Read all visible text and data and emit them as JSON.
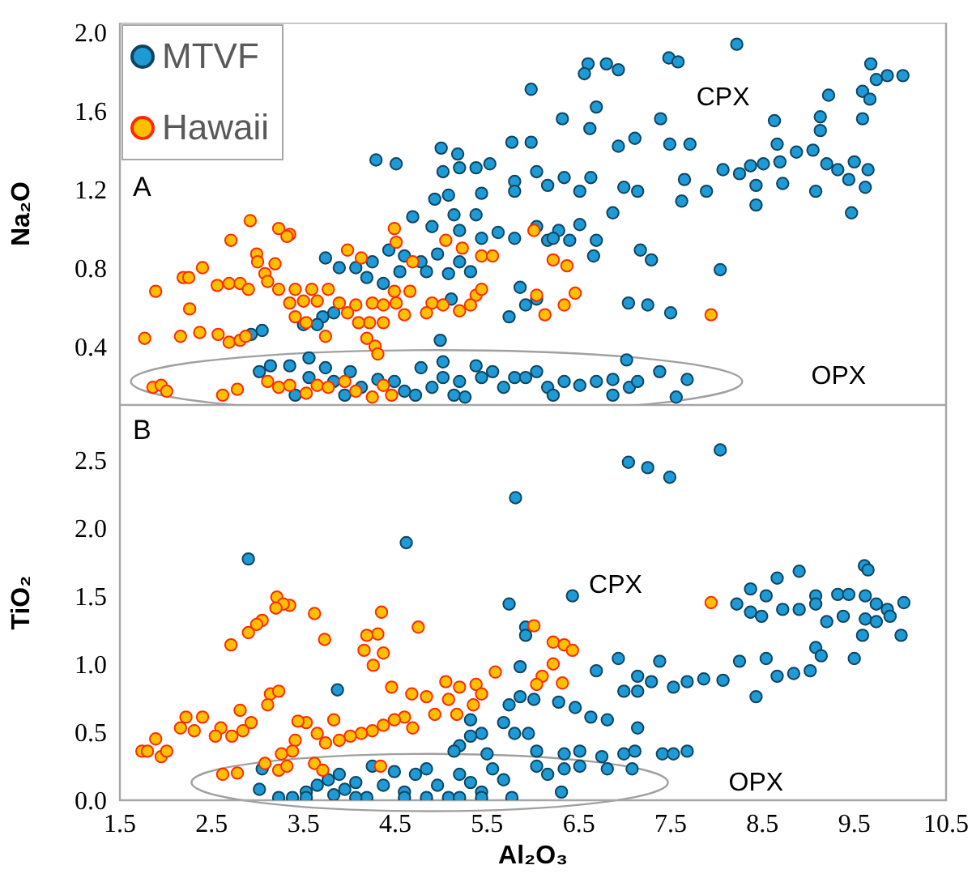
{
  "chart_data": [
    {
      "type": "scatter",
      "ylabel": "Na₂O",
      "legend": "top left",
      "marker": "circle",
      "tick_labels": "y",
      "xlim": [
        1.5,
        10.5
      ],
      "xticks": [
        1.5,
        2.5,
        3.5,
        4.5,
        5.5,
        6.5,
        7.5,
        8.5,
        9.5,
        10.5
      ],
      "ylim": [
        0.1,
        2.05
      ],
      "yticks": [
        0.4,
        0.8,
        1.2,
        1.6,
        {
          "value": 2,
          "label": "2.0"
        }
      ],
      "annotations": [
        "A",
        "CPX",
        "OPX"
      ],
      "series": [
        {
          "name": "MTVF",
          "color": "#1e9ad6",
          "x": [
            8.22,
            6.6,
            6.8,
            6.93,
            6.56,
            7.48,
            7.58,
            9.68,
            9.86,
            10.03,
            9.74,
            5.98,
            9.59,
            9.67,
            9.22,
            6.69,
            6.32,
            6.62,
            7.39,
            8.63,
            9.13,
            9.59,
            9.13,
            5.77,
            5.98,
            5.0,
            5.18,
            4.29,
            4.51,
            6.93,
            7.11,
            7.49,
            7.71,
            8.66,
            8.07,
            8.25,
            8.37,
            8.51,
            8.69,
            8.87,
            9.05,
            9.2,
            9.32,
            9.5,
            9.65,
            8.43,
            8.72,
            9.08,
            9.44,
            9.62,
            7.65,
            7.89,
            7.62,
            8.43,
            9.47,
            5.02,
            5.2,
            5.38,
            5.53,
            5.8,
            6.04,
            6.34,
            6.63,
            5.08,
            5.44,
            5.8,
            6.16,
            6.51,
            4.93,
            4.69,
            5.14,
            5.38,
            4.9,
            5.2,
            5.44,
            5.62,
            5.8,
            6.04,
            6.28,
            6.51,
            6.69,
            6.87,
            7.14,
            6.99,
            4.07,
            4.25,
            4.43,
            4.6,
            4.78,
            4.96,
            5.2,
            4.19,
            4.55,
            4.84,
            5.08,
            5.32,
            3.74,
            3.89,
            4.37,
            5.86,
            6.04,
            5.92,
            5.74,
            5.11,
            7.04,
            7.25,
            7.5,
            8.04,
            7.17,
            7.29,
            6.66,
            6.4,
            6.16,
            6.22,
            3.71,
            3.5,
            3.65,
            3.83,
            3.05,
            2.93,
            4.99,
            5.02,
            3.56,
            7.02,
            3.02,
            3.14,
            3.35,
            3.56,
            3.74,
            3.83,
            4.01,
            4.13,
            4.31,
            4.49,
            4.6,
            4.78,
            4.9,
            5.02,
            5.2,
            5.26,
            5.38,
            5.44,
            5.56,
            5.68,
            5.8,
            5.92,
            6.04,
            6.16,
            6.34,
            6.51,
            6.69,
            6.87,
            7.05,
            7.14,
            7.38,
            7.56,
            7.68,
            3.41,
            3.95,
            4.72,
            5.14,
            6.22,
            6.87
          ],
          "values": [
            1.94,
            1.84,
            1.84,
            1.81,
            1.79,
            1.87,
            1.85,
            1.84,
            1.78,
            1.78,
            1.76,
            1.71,
            1.7,
            1.66,
            1.68,
            1.62,
            1.56,
            1.51,
            1.56,
            1.55,
            1.57,
            1.56,
            1.5,
            1.44,
            1.44,
            1.41,
            1.38,
            1.35,
            1.33,
            1.42,
            1.46,
            1.43,
            1.43,
            1.43,
            1.3,
            1.28,
            1.32,
            1.33,
            1.34,
            1.39,
            1.4,
            1.33,
            1.3,
            1.34,
            1.3,
            1.22,
            1.23,
            1.19,
            1.25,
            1.21,
            1.25,
            1.19,
            1.14,
            1.12,
            1.08,
            1.29,
            1.31,
            1.31,
            1.33,
            1.24,
            1.29,
            1.26,
            1.26,
            1.17,
            1.18,
            1.19,
            1.22,
            1.19,
            1.15,
            1.06,
            1.07,
            1.07,
            1.01,
            0.99,
            0.95,
            0.98,
            0.95,
            1.01,
            0.99,
            1.02,
            0.94,
            1.08,
            1.19,
            1.21,
            0.8,
            0.83,
            0.89,
            0.86,
            0.83,
            0.87,
            0.83,
            0.75,
            0.78,
            0.78,
            0.77,
            0.78,
            0.85,
            0.8,
            0.72,
            0.7,
            0.64,
            0.61,
            0.55,
            0.64,
            0.62,
            0.61,
            0.57,
            0.79,
            0.89,
            0.84,
            0.86,
            0.94,
            0.94,
            0.95,
            0.55,
            0.51,
            0.51,
            0.57,
            0.48,
            0.46,
            0.43,
            0.32,
            0.34,
            0.33,
            0.27,
            0.3,
            0.3,
            0.24,
            0.29,
            0.22,
            0.27,
            0.19,
            0.23,
            0.22,
            0.17,
            0.29,
            0.19,
            0.24,
            0.22,
            0.14,
            0.3,
            0.24,
            0.27,
            0.19,
            0.24,
            0.24,
            0.27,
            0.19,
            0.22,
            0.2,
            0.22,
            0.23,
            0.19,
            0.22,
            0.27,
            0.14,
            0.23,
            0.15,
            0.15,
            0.15,
            0.15,
            0.15,
            0.15
          ]
        },
        {
          "name": "Hawaii",
          "color": "#ffc000",
          "x": [
            2.92,
            3.23,
            3.35,
            3.32,
            2.71,
            2.99,
            3.0,
            3.19,
            3.08,
            2.4,
            2.19,
            2.25,
            1.89,
            2.26,
            2.56,
            2.69,
            2.81,
            2.9,
            3.11,
            3.23,
            3.41,
            3.59,
            3.77,
            3.35,
            3.5,
            3.65,
            3.41,
            3.53,
            3.89,
            4.07,
            4.25,
            4.37,
            4.51,
            4.49,
            4.66,
            4.9,
            5.02,
            5.2,
            4.84,
            4.6,
            4.37,
            4.22,
            4.1,
            3.98,
            1.77,
            2.16,
            2.37,
            2.57,
            2.69,
            2.81,
            2.87,
            3.74,
            4.19,
            4.28,
            4.31,
            3.98,
            4.13,
            4.49,
            4.51,
            4.69,
            5.05,
            5.23,
            5.44,
            5.56,
            5.38,
            5.44,
            5.32,
            6.01,
            6.22,
            6.37,
            6.46,
            6.04,
            6.13,
            6.34,
            7.94,
            1.86,
            1.95,
            2.01,
            2.62,
            2.78,
            3.11,
            3.23,
            3.35,
            3.53,
            3.65,
            3.77,
            3.95,
            4.07,
            4.25,
            4.37,
            4.46
          ],
          "values": [
            1.04,
            1.0,
            0.97,
            0.96,
            0.94,
            0.87,
            0.83,
            0.82,
            0.77,
            0.8,
            0.75,
            0.75,
            0.68,
            0.59,
            0.71,
            0.72,
            0.72,
            0.69,
            0.73,
            0.69,
            0.69,
            0.69,
            0.69,
            0.62,
            0.63,
            0.63,
            0.55,
            0.52,
            0.62,
            0.61,
            0.62,
            0.61,
            0.62,
            0.68,
            0.68,
            0.62,
            0.61,
            0.58,
            0.57,
            0.56,
            0.52,
            0.52,
            0.52,
            0.57,
            0.44,
            0.45,
            0.47,
            0.46,
            0.42,
            0.43,
            0.45,
            0.45,
            0.44,
            0.4,
            0.36,
            0.89,
            0.85,
            1.0,
            0.93,
            0.83,
            0.94,
            0.9,
            0.86,
            0.86,
            0.66,
            0.69,
            0.61,
            0.99,
            0.84,
            0.81,
            0.67,
            0.66,
            0.56,
            0.61,
            0.56,
            0.19,
            0.2,
            0.17,
            0.15,
            0.18,
            0.22,
            0.19,
            0.2,
            0.16,
            0.2,
            0.19,
            0.22,
            0.17,
            0.14,
            0.2,
            0.15
          ]
        }
      ]
    },
    {
      "type": "scatter",
      "ylabel": "TiO₂",
      "xlabel": "Al₂O₃",
      "marker": "circle",
      "xlim": [
        1.5,
        10.5
      ],
      "xticks": [
        1.5,
        2.5,
        3.5,
        4.5,
        5.5,
        6.5,
        7.5,
        8.5,
        9.5,
        10.5
      ],
      "ylim": [
        0,
        2.9
      ],
      "yticks": [
        {
          "value": 0,
          "label": "0.0"
        },
        0.5,
        {
          "value": 1,
          "label": "1.0"
        },
        1.5,
        {
          "value": 2,
          "label": "2.0"
        },
        2.5
      ],
      "annotations": [
        "B",
        "CPX",
        "OPX"
      ],
      "series": [
        {
          "color": "#1e9ad6",
          "x": [
            8.04,
            7.04,
            7.25,
            7.49,
            5.81,
            4.62,
            2.9,
            6.43,
            5.74,
            5.92,
            5.92,
            5.86,
            9.61,
            9.65,
            8.9,
            8.66,
            8.37,
            8.54,
            9.08,
            9.32,
            9.44,
            9.62,
            9.74,
            9.86,
            8.22,
            8.37,
            8.49,
            8.72,
            8.9,
            9.08,
            9.2,
            9.38,
            9.62,
            9.74,
            9.89,
            10.04,
            10.01,
            9.59,
            9.5,
            8.43,
            9.08,
            9.14,
            9.02,
            8.84,
            8.66,
            8.54,
            8.25,
            8.07,
            7.86,
            7.68,
            7.53,
            7.38,
            7.14,
            6.93,
            6.69,
            6.99,
            7.14,
            7.29,
            5.74,
            5.86,
            6.01,
            6.28,
            6.46,
            6.63,
            6.81,
            7.14,
            5.95,
            5.8,
            5.68,
            5.44,
            5.32,
            5.2,
            5.14,
            5.5,
            6.04,
            6.34,
            6.51,
            6.75,
            6.99,
            7.11,
            7.41,
            7.68,
            5.32,
            7.53,
            3.87,
            3.02,
            3.05,
            3.23,
            3.38,
            3.53,
            3.65,
            3.77,
            3.89,
            3.95,
            4.07,
            4.19,
            4.25,
            4.37,
            4.49,
            4.6,
            4.72,
            4.84,
            4.96,
            5.08,
            5.2,
            5.32,
            5.44,
            5.56,
            5.68,
            5.77,
            6.04,
            6.16,
            6.34,
            6.51,
            6.81,
            7.08,
            6.31,
            3.53,
            4.07,
            4.84,
            5.44,
            3.83,
            4.6,
            5.2
          ],
          "values": [
            2.57,
            2.48,
            2.44,
            2.37,
            2.22,
            1.89,
            1.77,
            1.5,
            1.44,
            1.27,
            1.21,
            0.98,
            1.72,
            1.69,
            1.68,
            1.63,
            1.55,
            1.5,
            1.5,
            1.51,
            1.51,
            1.5,
            1.44,
            1.4,
            1.44,
            1.38,
            1.35,
            1.4,
            1.4,
            1.44,
            1.31,
            1.35,
            1.33,
            1.31,
            1.35,
            1.45,
            1.21,
            1.21,
            1.04,
            0.76,
            1.12,
            1.06,
            0.95,
            0.93,
            0.91,
            1.04,
            1.02,
            0.88,
            0.89,
            0.87,
            0.83,
            1.02,
            0.91,
            1.04,
            0.95,
            0.8,
            0.8,
            0.87,
            0.7,
            0.76,
            0.74,
            0.72,
            0.68,
            0.61,
            0.59,
            0.53,
            0.49,
            0.49,
            0.57,
            0.49,
            0.47,
            0.4,
            0.36,
            0.34,
            0.36,
            0.34,
            0.36,
            0.32,
            0.34,
            0.36,
            0.34,
            0.36,
            0.59,
            0.34,
            0.81,
            0.08,
            0.23,
            0.02,
            0.02,
            0.06,
            0.11,
            0.15,
            0.19,
            0.08,
            0.13,
            0.02,
            0.25,
            0.11,
            0.21,
            0.06,
            0.19,
            0.23,
            0.11,
            0.02,
            0.19,
            0.13,
            0.06,
            0.23,
            0.15,
            0.02,
            0.25,
            0.19,
            0.23,
            0.25,
            0.23,
            0.23,
            0.06,
            0.02,
            0.02,
            0.02,
            0.02,
            0.04,
            0.02,
            0.02
          ]
        },
        {
          "color": "#ffc000",
          "x": [
            3.21,
            3.35,
            3.28,
            3.2,
            3.62,
            3.05,
            2.99,
            2.9,
            2.71,
            3.73,
            4.35,
            4.31,
            4.19,
            4.37,
            4.16,
            4.26,
            4.75,
            7.94,
            6.01,
            6.22,
            6.34,
            6.43,
            6.22,
            6.1,
            6.04,
            6.32,
            5.59,
            5.38,
            5.2,
            5.05,
            5.44,
            5.35,
            5.08,
            4.84,
            4.68,
            4.46,
            4.6,
            4.49,
            4.37,
            4.25,
            4.13,
            4.01,
            3.89,
            3.74,
            3.65,
            3.53,
            3.44,
            3.41,
            3.38,
            3.26,
            3.14,
            3.23,
            3.11,
            2.81,
            2.93,
            2.84,
            2.72,
            2.6,
            2.54,
            2.4,
            2.22,
            2.16,
            2.31,
            1.89,
            1.74,
            1.8,
            1.95,
            2.01,
            2.62,
            2.78,
            3.08,
            3.23,
            3.32,
            3.62,
            3.71,
            4.34,
            3.83,
            4.93,
            5.17,
            4.69
          ],
          "values": [
            1.49,
            1.43,
            1.44,
            1.41,
            1.37,
            1.32,
            1.29,
            1.23,
            1.14,
            1.18,
            1.38,
            1.22,
            1.21,
            1.08,
            1.1,
            0.99,
            1.27,
            1.45,
            1.28,
            1.16,
            1.14,
            1.1,
            1.0,
            0.91,
            0.85,
            0.86,
            0.94,
            0.85,
            0.83,
            0.87,
            0.78,
            0.7,
            0.74,
            0.76,
            0.78,
            0.83,
            0.61,
            0.59,
            0.55,
            0.51,
            0.49,
            0.47,
            0.44,
            0.42,
            0.49,
            0.57,
            0.58,
            0.44,
            0.36,
            0.34,
            0.78,
            0.8,
            0.7,
            0.66,
            0.57,
            0.51,
            0.47,
            0.53,
            0.47,
            0.61,
            0.61,
            0.53,
            0.51,
            0.45,
            0.36,
            0.36,
            0.32,
            0.36,
            0.19,
            0.2,
            0.27,
            0.22,
            0.25,
            0.27,
            0.22,
            0.25,
            0.59,
            0.63,
            0.63,
            0.53
          ]
        }
      ]
    }
  ]
}
